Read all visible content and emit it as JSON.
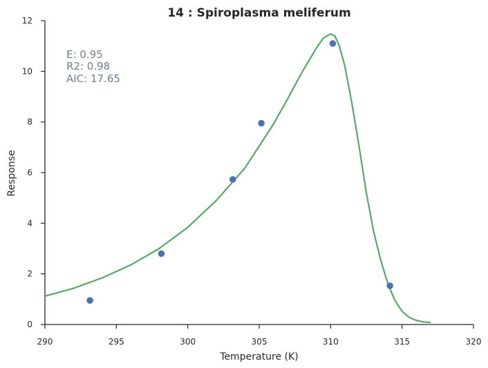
{
  "chart_data": {
    "type": "scatter",
    "title": "14 : Spiroplasma meliferum",
    "xlabel": "Temperature (K)",
    "ylabel": "Response",
    "xlim": [
      290,
      320
    ],
    "ylim": [
      0,
      12
    ],
    "xticks": [
      290,
      295,
      300,
      305,
      310,
      315,
      320
    ],
    "yticks": [
      0,
      2,
      4,
      6,
      8,
      10,
      12
    ],
    "grid": false,
    "stats": [
      "E:  0.95",
      "R2:  0.98",
      "AIC: 17.65"
    ],
    "series": [
      {
        "kind": "points",
        "color": "#4c72b0",
        "x": [
          293.15,
          298.15,
          303.15,
          305.15,
          310.15,
          314.15
        ],
        "y": [
          0.95,
          2.8,
          5.73,
          7.95,
          11.1,
          1.53
        ]
      },
      {
        "kind": "curve",
        "color": "#55a868",
        "x": [
          290.0,
          292.0,
          294.0,
          296.0,
          298.0,
          300.0,
          302.0,
          304.0,
          306.0,
          307.0,
          308.0,
          309.0,
          309.5,
          310.0,
          310.3,
          310.6,
          311.0,
          311.5,
          312.0,
          312.5,
          313.0,
          313.5,
          314.0,
          314.5,
          315.0,
          315.5,
          316.0,
          316.5,
          317.0
        ],
        "y": [
          1.12,
          1.43,
          1.84,
          2.35,
          3.0,
          3.84,
          4.9,
          6.18,
          7.92,
          8.92,
          9.97,
          10.92,
          11.32,
          11.48,
          11.4,
          11.02,
          10.2,
          8.7,
          7.0,
          5.2,
          3.7,
          2.55,
          1.62,
          0.95,
          0.52,
          0.28,
          0.16,
          0.1,
          0.08
        ]
      }
    ]
  }
}
